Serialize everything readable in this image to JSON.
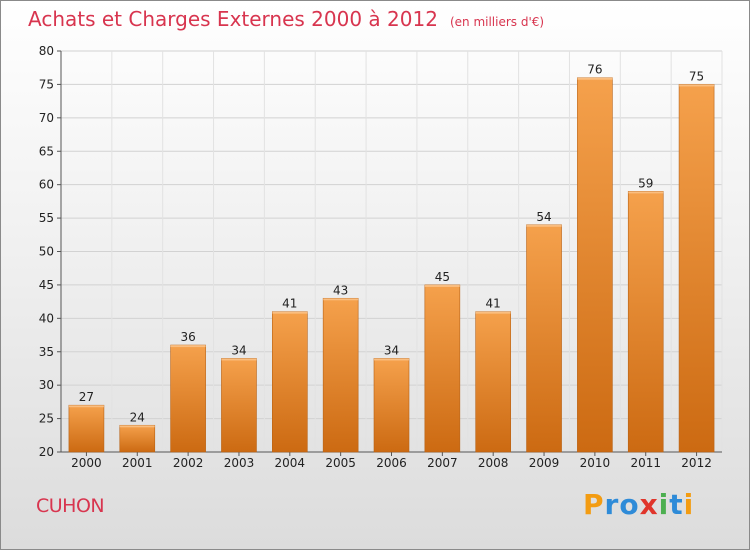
{
  "title": "Achats et Charges Externes 2000 à 2012",
  "subtitle": "(en milliers d'€)",
  "location": "CUHON",
  "logo": {
    "text": "Proxiti",
    "letters": [
      {
        "ch": "P",
        "color": "#f39c12"
      },
      {
        "ch": "r",
        "color": "#2e8bd8"
      },
      {
        "ch": "o",
        "color": "#2e8bd8"
      },
      {
        "ch": "x",
        "color": "#e0352b"
      },
      {
        "ch": "i",
        "color": "#4caf50"
      },
      {
        "ch": "t",
        "color": "#2e8bd8"
      },
      {
        "ch": "i",
        "color": "#f39c12"
      }
    ]
  },
  "colors": {
    "bar_top": "#f5a14c",
    "bar_bottom": "#cc6a12",
    "title": "#d8354f"
  },
  "chart_data": {
    "type": "bar",
    "title": "Achats et Charges Externes 2000 à 2012",
    "ylabel": "",
    "xlabel": "",
    "categories": [
      "2000",
      "2001",
      "2002",
      "2003",
      "2004",
      "2005",
      "2006",
      "2007",
      "2008",
      "2009",
      "2010",
      "2011",
      "2012"
    ],
    "values": [
      27,
      24,
      36,
      34,
      41,
      43,
      34,
      45,
      41,
      54,
      76,
      59,
      75
    ],
    "ylim": [
      20,
      80
    ],
    "yticks": [
      20,
      25,
      30,
      35,
      40,
      45,
      50,
      55,
      60,
      65,
      70,
      75,
      80
    ],
    "grid": true
  }
}
